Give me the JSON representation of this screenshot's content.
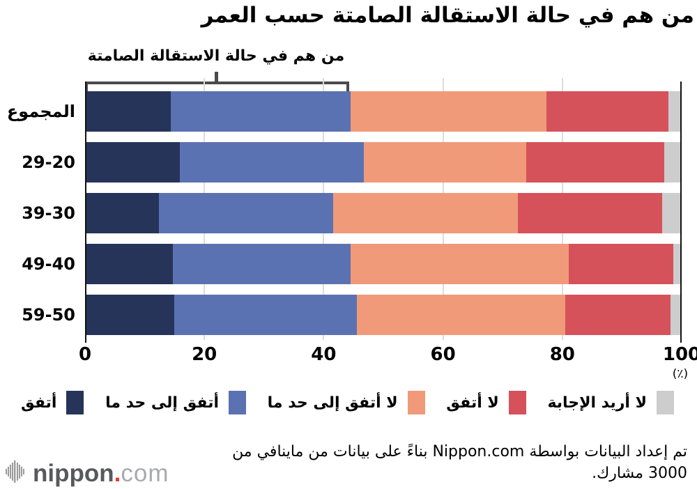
{
  "title": "من هم في حالة الاستقالة الصامتة حسب العمر",
  "annotation": {
    "label": "من هم في حالة الاستقالة الصامتة"
  },
  "chart_data": {
    "type": "bar",
    "orientation": "horizontal-stacked",
    "categories": [
      "المجموع",
      "29-20",
      "39-30",
      "49-40",
      "59-50"
    ],
    "series": [
      {
        "name": "أتفق",
        "color": "#26345a",
        "values": [
          14.4,
          15.9,
          12.4,
          14.7,
          14.9
        ]
      },
      {
        "name": "أتفق إلى حد ما",
        "color": "#5b72b2",
        "values": [
          30.1,
          30.8,
          29.2,
          29.8,
          30.7
        ]
      },
      {
        "name": "لا أتفق إلى حد ما",
        "color": "#f19a79",
        "values": [
          32.8,
          27.2,
          31.0,
          36.6,
          34.9
        ]
      },
      {
        "name": "لا أتفق",
        "color": "#d5525b",
        "values": [
          20.5,
          23.2,
          24.1,
          17.5,
          17.6
        ]
      },
      {
        "name": "لا أريد الإجابة",
        "color": "#cdcdcd",
        "values": [
          2.2,
          2.9,
          3.3,
          1.4,
          1.9
        ]
      }
    ],
    "xlim": [
      0,
      100
    ],
    "ticks": [
      0,
      20,
      40,
      60,
      80,
      100
    ],
    "unit": "(٪)",
    "grid": true,
    "legend_position": "bottom"
  },
  "legend": {
    "items": [
      {
        "label": "أتفق",
        "color": "#26345a"
      },
      {
        "label": "أتفق إلى حد ما",
        "color": "#5b72b2"
      },
      {
        "label": "لا أتفق إلى حد ما",
        "color": "#f19a79"
      },
      {
        "label": "لا أتفق",
        "color": "#d5525b"
      },
      {
        "label": "لا أريد الإجابة",
        "color": "#cdcdcd"
      }
    ]
  },
  "source": {
    "line1": "تم إعداد البيانات بواسطة Nippon.com بناءً على بيانات من ماينافي من",
    "line2": "3000 مشارك."
  },
  "logo": {
    "name": "nippon",
    "dot": ".",
    "tld": "com"
  }
}
